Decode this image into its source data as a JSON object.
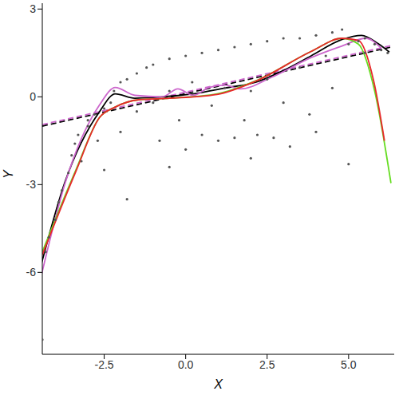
{
  "chart_data": {
    "type": "scatter",
    "x_label": "X",
    "y_label": "Y",
    "xlim": [
      -4.4,
      6.4
    ],
    "ylim": [
      -8.8,
      3.2
    ],
    "xticks": [
      -2.5,
      {
        "value": 0,
        "label": "0.0"
      },
      2.5,
      {
        "value": 5,
        "label": "5.0"
      }
    ],
    "yticks": [
      -6,
      -3,
      0,
      3
    ],
    "grid": false,
    "series": [
      {
        "type": "scatter",
        "color": "#555555",
        "marker": "circle",
        "x": [
          -4.4,
          -4.3,
          -4.2,
          -4.0,
          -3.9,
          -3.8,
          -3.6,
          -3.5,
          -3.4,
          -3.3,
          -3.2,
          -3.0,
          -3.0,
          -2.8,
          -2.7,
          -2.5,
          -2.5,
          -2.3,
          -2.2,
          -2.0,
          -2.0,
          -1.8,
          -1.5,
          -1.5,
          -1.2,
          -1.0,
          -1.0,
          -0.8,
          -0.5,
          -0.5,
          -0.2,
          0.0,
          0.0,
          0.2,
          0.5,
          0.5,
          0.8,
          1.0,
          1.0,
          1.2,
          1.5,
          1.5,
          1.8,
          2.0,
          2.0,
          2.2,
          2.5,
          2.5,
          2.7,
          3.0,
          3.0,
          3.2,
          3.5,
          3.5,
          3.8,
          4.0,
          4.0,
          4.3,
          4.5,
          4.5,
          4.8,
          5.0,
          5.0,
          5.3,
          5.5,
          5.5,
          5.8,
          6.0,
          6.2,
          -1.8,
          -0.5,
          2.0
        ],
        "values": [
          -8.3,
          -5.3,
          -4.8,
          -4.2,
          -3.6,
          -3.2,
          -2.6,
          -2.0,
          -1.6,
          -1.3,
          -2.2,
          -1.0,
          -0.8,
          -0.6,
          -1.5,
          -0.4,
          -2.5,
          -0.2,
          0.2,
          0.5,
          -1.2,
          0.6,
          0.8,
          -0.5,
          1.0,
          -0.2,
          1.1,
          -1.5,
          1.3,
          0.2,
          -0.8,
          1.4,
          -1.8,
          0.5,
          1.5,
          -1.3,
          -0.3,
          1.6,
          -1.5,
          0.3,
          1.7,
          -1.4,
          -0.8,
          1.8,
          0.2,
          -1.3,
          1.9,
          0.6,
          -1.4,
          2.0,
          -0.2,
          -1.7,
          2.0,
          1.0,
          -0.6,
          2.1,
          -1.2,
          1.4,
          2.2,
          0.3,
          2.3,
          1.8,
          -2.3,
          1.9,
          2.0,
          1.5,
          1.8,
          1.6,
          1.5,
          -3.5,
          -2.4,
          -2.1
        ]
      },
      {
        "type": "line",
        "color": "#000000",
        "line_style": "dashed",
        "x": [
          -4.4,
          6.3
        ],
        "values": [
          -1.0,
          1.7
        ]
      },
      {
        "type": "line",
        "color": "#cc66cc",
        "line_style": "dashed",
        "x": [
          -4.4,
          6.3
        ],
        "values": [
          -0.95,
          1.75
        ]
      },
      {
        "type": "line",
        "color": "#000000",
        "line_style": "solid",
        "x": [
          -4.45,
          -3.7,
          -2.64,
          -2.16,
          -1.56,
          -0.72,
          0.24,
          1.2,
          2.16,
          3.0,
          3.85,
          4.8,
          5.4,
          5.9,
          6.25
        ],
        "values": [
          -5.8,
          -2.9,
          -0.5,
          0.1,
          -0.05,
          0.0,
          0.1,
          0.3,
          0.5,
          0.9,
          1.4,
          1.96,
          2.1,
          1.82,
          1.53
        ]
      },
      {
        "type": "line",
        "color": "#cc66cc",
        "line_style": "solid",
        "x": [
          -4.45,
          -3.7,
          -2.64,
          -2.16,
          -1.56,
          -0.72,
          -0.24,
          0.24,
          0.72,
          1.2,
          1.68,
          2.64,
          3.85,
          4.8,
          5.53,
          6.0
        ],
        "values": [
          -6.2,
          -2.95,
          -0.27,
          0.32,
          0.05,
          0.0,
          0.27,
          0.05,
          0.32,
          0.4,
          0.27,
          0.67,
          1.34,
          1.74,
          2.0,
          1.66
        ]
      },
      {
        "type": "line",
        "color": "#66dd22",
        "line_style": "solid",
        "x": [
          -4.4,
          -3.37,
          -2.64,
          -2.16,
          -1.44,
          -0.5,
          0.96,
          2.16,
          3.85,
          4.8,
          5.3,
          5.8,
          6.3
        ],
        "values": [
          -5.3,
          -2.5,
          -0.7,
          -0.35,
          -0.1,
          -0.05,
          0.1,
          0.55,
          1.55,
          2.0,
          1.8,
          0.2,
          -2.95
        ]
      },
      {
        "type": "line",
        "color": "#e8282b",
        "line_style": "solid",
        "x": [
          -4.4,
          -3.37,
          -2.64,
          -2.16,
          -1.44,
          -0.5,
          0.96,
          2.16,
          3.85,
          4.8,
          5.3,
          5.77,
          6.1
        ],
        "values": [
          -5.4,
          -2.55,
          -0.7,
          -0.35,
          -0.1,
          -0.05,
          0.08,
          0.54,
          1.55,
          2.0,
          1.93,
          0.54,
          -1.5
        ]
      }
    ]
  }
}
